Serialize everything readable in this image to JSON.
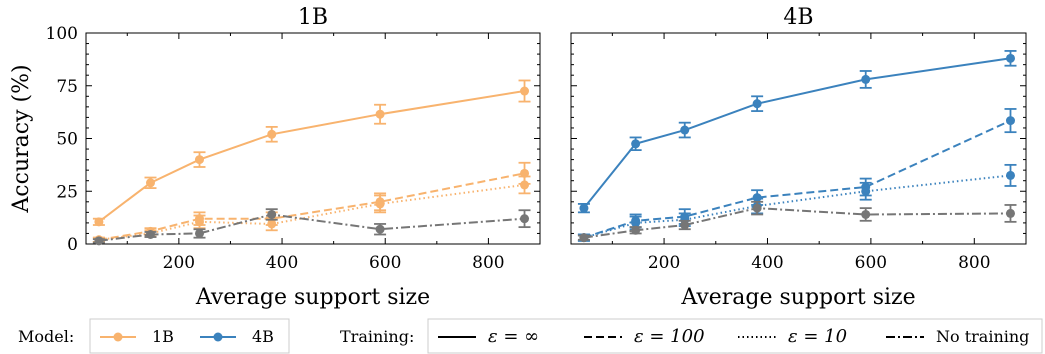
{
  "chart_data": [
    {
      "type": "line",
      "title": "1B",
      "xlabel": "Average support size",
      "ylabel": "Accuracy (%)",
      "xlim": [
        20,
        900
      ],
      "ylim": [
        0,
        100
      ],
      "xticks": [
        200,
        400,
        600,
        800
      ],
      "yticks": [
        0,
        25,
        50,
        75,
        100
      ],
      "color": "#f8b36e",
      "series": [
        {
          "training": "ε = ∞",
          "dash": "solid",
          "x": [
            45,
            145,
            240,
            380,
            590,
            870
          ],
          "y": [
            10.5,
            29,
            40,
            52,
            61.5,
            72.5
          ],
          "err": [
            1.5,
            2.5,
            3.5,
            3.5,
            4.5,
            5
          ]
        },
        {
          "training": "ε = 100",
          "dash": "dashed",
          "x": [
            45,
            145,
            240,
            380,
            590,
            870
          ],
          "y": [
            2,
            6,
            12,
            12,
            20,
            33.5
          ],
          "err": [
            1,
            1.5,
            3,
            3,
            4,
            5
          ]
        },
        {
          "training": "ε = 10",
          "dash": "dotted",
          "x": [
            45,
            145,
            240,
            380,
            590,
            870
          ],
          "y": [
            2,
            5,
            10.5,
            9.5,
            19,
            28
          ],
          "err": [
            1,
            1.5,
            3,
            3,
            4,
            4
          ]
        },
        {
          "training": "No training",
          "dash": "dashdot",
          "color": "#767676",
          "x": [
            45,
            145,
            240,
            380,
            590,
            870
          ],
          "y": [
            1.5,
            4.5,
            5,
            14,
            7,
            12
          ],
          "err": [
            0.8,
            1.2,
            2,
            2.5,
            2.5,
            4
          ]
        }
      ]
    },
    {
      "type": "line",
      "title": "4B",
      "xlabel": "Average support size",
      "ylabel": "",
      "xlim": [
        20,
        900
      ],
      "ylim": [
        0,
        100
      ],
      "xticks": [
        200,
        400,
        600,
        800
      ],
      "yticks": [
        0,
        25,
        50,
        75,
        100
      ],
      "color": "#3b82bd",
      "series": [
        {
          "training": "ε = ∞",
          "dash": "solid",
          "x": [
            45,
            145,
            240,
            380,
            590,
            870
          ],
          "y": [
            17,
            47.5,
            54,
            66.5,
            78,
            88
          ],
          "err": [
            2,
            3,
            3.5,
            3.5,
            4,
            3.5
          ]
        },
        {
          "training": "ε = 100",
          "dash": "dashed",
          "x": [
            45,
            145,
            240,
            380,
            590,
            870
          ],
          "y": [
            3,
            11,
            13,
            22,
            27,
            58.5
          ],
          "err": [
            1.5,
            3,
            3.5,
            3.5,
            4,
            5.5
          ]
        },
        {
          "training": "ε = 10",
          "dash": "dotted",
          "x": [
            45,
            145,
            240,
            380,
            590,
            870
          ],
          "y": [
            3,
            10,
            11.5,
            18,
            25,
            32.5
          ],
          "err": [
            1.5,
            3,
            3,
            3.5,
            4,
            5
          ]
        },
        {
          "training": "No training",
          "dash": "dashdot",
          "color": "#767676",
          "x": [
            45,
            145,
            240,
            380,
            590,
            870
          ],
          "y": [
            3,
            6.5,
            9,
            17,
            14,
            14.5
          ],
          "err": [
            1,
            1.5,
            2,
            3,
            3,
            4
          ]
        }
      ]
    }
  ],
  "legend": {
    "model_title": "Model:",
    "models": [
      {
        "label": "1B",
        "color": "#f8b36e"
      },
      {
        "label": "4B",
        "color": "#3b82bd"
      }
    ],
    "training_title": "Training:",
    "training": [
      {
        "label": "ε = ∞",
        "dash": "solid"
      },
      {
        "label": "ε = 100",
        "dash": "dashed"
      },
      {
        "label": "ε = 10",
        "dash": "dotted"
      },
      {
        "label": "No training",
        "dash": "dashdot"
      }
    ]
  }
}
